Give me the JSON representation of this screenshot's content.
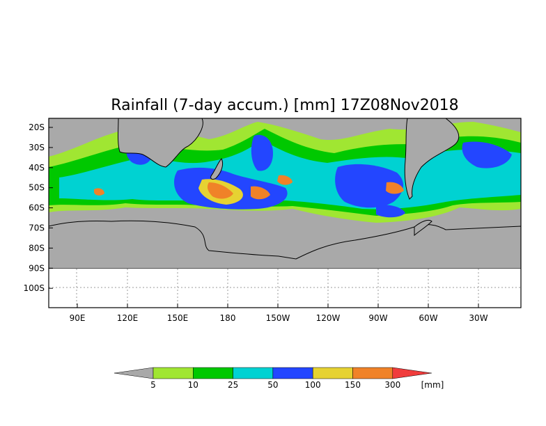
{
  "map": {
    "title": "Rainfall (7-day accum.) [mm] 17Z08Nov2018",
    "lat_labels": [
      "20S",
      "30S",
      "40S",
      "50S",
      "60S",
      "70S",
      "80S",
      "90S",
      "100S"
    ],
    "lon_labels": [
      "90E",
      "120E",
      "150E",
      "180",
      "150W",
      "120W",
      "90W",
      "60W",
      "30W"
    ],
    "no_data_color": "#a9a9a9"
  },
  "legend": {
    "units": "[mm]",
    "thresholds": [
      "5",
      "10",
      "25",
      "50",
      "100",
      "150",
      "300"
    ],
    "colors": [
      "#a9a9a9",
      "#a0e632",
      "#00c800",
      "#00d2d2",
      "#2346ff",
      "#e6d232",
      "#f08228",
      "#f03c3c"
    ]
  }
}
